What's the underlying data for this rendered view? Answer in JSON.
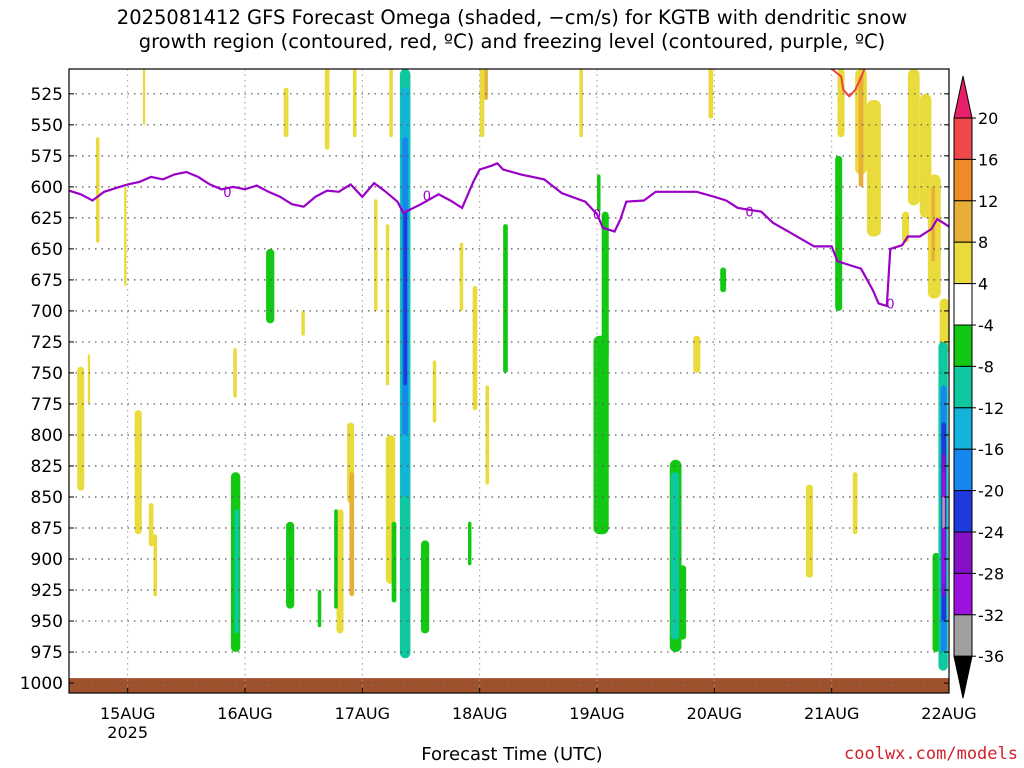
{
  "title": "2025081412 GFS Forecast Omega (shaded, −cm/s) for KGTB with dendritic snow\ngrowth region (contoured, red, ºC) and freezing level (contoured, purple, ºC)",
  "x_axis_title": "Forecast Time (UTC)",
  "credit": "coolwx.com/models",
  "colors": {
    "freezing_level": "#9b00c8",
    "dgz": "#f04040",
    "ground": "#a0522d",
    "grid": "#555555"
  },
  "chart_data": {
    "type": "heatmap",
    "title": "2025081412 GFS Forecast Omega (shaded, −cm/s) for KGTB with dendritic snow growth region (contoured, red, ºC) and freezing level (contoured, purple, ºC)",
    "xlabel": "Forecast Time (UTC)",
    "ylabel": "",
    "x_range_days": [
      14.5,
      22.0
    ],
    "x_ticks": [
      {
        "day": 15,
        "label": "15AUG",
        "sublabel": "2025"
      },
      {
        "day": 16,
        "label": "16AUG"
      },
      {
        "day": 17,
        "label": "17AUG"
      },
      {
        "day": 18,
        "label": "18AUG"
      },
      {
        "day": 19,
        "label": "19AUG"
      },
      {
        "day": 20,
        "label": "20AUG"
      },
      {
        "day": 21,
        "label": "21AUG"
      },
      {
        "day": 22,
        "label": "22AUG"
      }
    ],
    "y_range_hpa": [
      1008,
      505
    ],
    "y_ticks": [
      525,
      550,
      575,
      600,
      625,
      650,
      675,
      700,
      725,
      750,
      775,
      800,
      825,
      850,
      875,
      900,
      925,
      950,
      975,
      1000
    ],
    "grid": true,
    "colorbar": {
      "levels": [
        20,
        16,
        12,
        8,
        4,
        -4,
        -8,
        -12,
        -16,
        -20,
        -24,
        -28,
        -32,
        -36
      ],
      "colors": [
        "#e8206a",
        "#f04848",
        "#ef8a28",
        "#e8ae38",
        "#e9db3c",
        "#ffffff",
        "#12c812",
        "#10c8a0",
        "#12b4dc",
        "#1488f0",
        "#1e3adc",
        "#8410c8",
        "#9e10de",
        "#a0a0a0",
        "#000000"
      ]
    },
    "freezing_level_contour": {
      "label": "0",
      "points": [
        [
          14.5,
          603
        ],
        [
          14.6,
          606
        ],
        [
          14.7,
          611
        ],
        [
          14.8,
          604
        ],
        [
          14.9,
          601
        ],
        [
          15.0,
          598
        ],
        [
          15.1,
          596
        ],
        [
          15.2,
          592
        ],
        [
          15.3,
          594
        ],
        [
          15.4,
          590
        ],
        [
          15.5,
          588
        ],
        [
          15.6,
          592
        ],
        [
          15.7,
          598
        ],
        [
          15.8,
          602
        ],
        [
          15.9,
          600
        ],
        [
          16.0,
          602
        ],
        [
          16.1,
          599
        ],
        [
          16.2,
          604
        ],
        [
          16.3,
          608
        ],
        [
          16.4,
          614
        ],
        [
          16.5,
          616
        ],
        [
          16.6,
          608
        ],
        [
          16.7,
          603
        ],
        [
          16.8,
          604
        ],
        [
          16.9,
          598
        ],
        [
          17.0,
          608
        ],
        [
          17.1,
          597
        ],
        [
          17.2,
          604
        ],
        [
          17.3,
          612
        ],
        [
          17.35,
          621
        ],
        [
          17.5,
          614
        ],
        [
          17.65,
          606
        ],
        [
          17.75,
          611
        ],
        [
          17.85,
          617
        ],
        [
          17.95,
          595
        ],
        [
          18.0,
          586
        ],
        [
          18.1,
          583
        ],
        [
          18.15,
          581
        ],
        [
          18.2,
          586
        ],
        [
          18.35,
          590
        ],
        [
          18.55,
          594
        ],
        [
          18.7,
          605
        ],
        [
          18.9,
          612
        ],
        [
          19.0,
          622
        ],
        [
          19.05,
          633
        ],
        [
          19.15,
          636
        ],
        [
          19.2,
          626
        ],
        [
          19.25,
          612
        ],
        [
          19.4,
          611
        ],
        [
          19.5,
          604
        ],
        [
          19.65,
          604
        ],
        [
          19.85,
          604
        ],
        [
          20.0,
          608
        ],
        [
          20.1,
          611
        ],
        [
          20.2,
          617
        ],
        [
          20.4,
          620
        ],
        [
          20.5,
          629
        ],
        [
          20.65,
          637
        ],
        [
          20.85,
          648
        ],
        [
          21.0,
          648
        ],
        [
          21.05,
          660
        ],
        [
          21.15,
          663
        ],
        [
          21.25,
          666
        ],
        [
          21.35,
          683
        ],
        [
          21.4,
          694
        ],
        [
          21.47,
          696
        ],
        [
          21.5,
          650
        ],
        [
          21.6,
          647
        ],
        [
          21.65,
          640
        ],
        [
          21.75,
          640
        ],
        [
          21.85,
          634
        ],
        [
          21.9,
          626
        ],
        [
          22.0,
          632
        ]
      ]
    },
    "dgz_contour": {
      "points": [
        [
          21.0,
          505
        ],
        [
          21.08,
          511
        ],
        [
          21.1,
          522
        ],
        [
          21.15,
          527
        ],
        [
          21.2,
          522
        ],
        [
          21.25,
          512
        ],
        [
          21.28,
          505
        ]
      ]
    },
    "omega_regions": [
      {
        "level": "4",
        "x": [
          14.57,
          14.63
        ],
        "p": [
          745,
          845
        ]
      },
      {
        "level": "4",
        "x": [
          14.66,
          14.68
        ],
        "p": [
          735,
          775
        ]
      },
      {
        "level": "4",
        "x": [
          14.73,
          14.76
        ],
        "p": [
          560,
          645
        ]
      },
      {
        "level": "4",
        "x": [
          14.97,
          14.99
        ],
        "p": [
          600,
          680
        ]
      },
      {
        "level": "4",
        "x": [
          15.06,
          15.12
        ],
        "p": [
          780,
          880
        ]
      },
      {
        "level": "4",
        "x": [
          15.13,
          15.15
        ],
        "p": [
          505,
          550
        ]
      },
      {
        "level": "4",
        "x": [
          15.18,
          15.22
        ],
        "p": [
          855,
          890
        ]
      },
      {
        "level": "4",
        "x": [
          15.22,
          15.25
        ],
        "p": [
          880,
          930
        ]
      },
      {
        "level": "4",
        "x": [
          15.9,
          15.93
        ],
        "p": [
          730,
          770
        ]
      },
      {
        "level": "4",
        "x": [
          16.33,
          16.37
        ],
        "p": [
          520,
          560
        ]
      },
      {
        "level": "4",
        "x": [
          16.48,
          16.51
        ],
        "p": [
          700,
          720
        ]
      },
      {
        "level": "4",
        "x": [
          16.68,
          16.72
        ],
        "p": [
          505,
          570
        ]
      },
      {
        "level": "4",
        "x": [
          16.78,
          16.84
        ],
        "p": [
          860,
          960
        ]
      },
      {
        "level": "4",
        "x": [
          16.87,
          16.93
        ],
        "p": [
          790,
          855
        ]
      },
      {
        "level": "4",
        "x": [
          16.92,
          16.95
        ],
        "p": [
          505,
          560
        ]
      },
      {
        "level": "4",
        "x": [
          17.1,
          17.13
        ],
        "p": [
          610,
          700
        ]
      },
      {
        "level": "4",
        "x": [
          17.2,
          17.23
        ],
        "p": [
          630,
          760
        ]
      },
      {
        "level": "4",
        "x": [
          17.2,
          17.28
        ],
        "p": [
          800,
          920
        ]
      },
      {
        "level": "4",
        "x": [
          17.23,
          17.26
        ],
        "p": [
          505,
          560
        ]
      },
      {
        "level": "4",
        "x": [
          17.6,
          17.63
        ],
        "p": [
          740,
          790
        ]
      },
      {
        "level": "4",
        "x": [
          17.83,
          17.86
        ],
        "p": [
          645,
          700
        ]
      },
      {
        "level": "4",
        "x": [
          17.94,
          17.98
        ],
        "p": [
          680,
          780
        ]
      },
      {
        "level": "4",
        "x": [
          18.0,
          18.04
        ],
        "p": [
          505,
          560
        ]
      },
      {
        "level": "4",
        "x": [
          18.05,
          18.08
        ],
        "p": [
          760,
          840
        ]
      },
      {
        "level": "4",
        "x": [
          18.85,
          18.88
        ],
        "p": [
          505,
          560
        ]
      },
      {
        "level": "4",
        "x": [
          19.95,
          19.99
        ],
        "p": [
          505,
          545
        ]
      },
      {
        "level": "4",
        "x": [
          19.82,
          19.88
        ],
        "p": [
          720,
          750
        ]
      },
      {
        "level": "4",
        "x": [
          20.78,
          20.84
        ],
        "p": [
          840,
          915
        ]
      },
      {
        "level": "4",
        "x": [
          21.05,
          21.11
        ],
        "p": [
          505,
          560
        ]
      },
      {
        "level": "4",
        "x": [
          21.18,
          21.22
        ],
        "p": [
          830,
          880
        ]
      },
      {
        "level": "4",
        "x": [
          21.2,
          21.3
        ],
        "p": [
          505,
          590
        ]
      },
      {
        "level": "4",
        "x": [
          21.3,
          21.42
        ],
        "p": [
          530,
          640
        ]
      },
      {
        "level": "4",
        "x": [
          21.6,
          21.66
        ],
        "p": [
          620,
          645
        ]
      },
      {
        "level": "4",
        "x": [
          21.65,
          21.75
        ],
        "p": [
          505,
          615
        ]
      },
      {
        "level": "4",
        "x": [
          21.75,
          21.85
        ],
        "p": [
          525,
          625
        ]
      },
      {
        "level": "4",
        "x": [
          21.82,
          21.93
        ],
        "p": [
          590,
          690
        ]
      },
      {
        "level": "4",
        "x": [
          21.92,
          22.0
        ],
        "p": [
          690,
          735
        ]
      },
      {
        "level": "8",
        "x": [
          21.23,
          21.27
        ],
        "p": [
          510,
          600
        ]
      },
      {
        "level": "8",
        "x": [
          21.85,
          21.88
        ],
        "p": [
          600,
          660
        ]
      },
      {
        "level": "8",
        "x": [
          16.89,
          16.93
        ],
        "p": [
          830,
          930
        ]
      },
      {
        "level": "8",
        "x": [
          18.04,
          18.07
        ],
        "p": [
          505,
          530
        ]
      },
      {
        "level": "-4",
        "x": [
          16.18,
          16.25
        ],
        "p": [
          650,
          710
        ]
      },
      {
        "level": "-4",
        "x": [
          15.88,
          15.96
        ],
        "p": [
          830,
          975
        ]
      },
      {
        "level": "-4",
        "x": [
          16.35,
          16.42
        ],
        "p": [
          870,
          940
        ]
      },
      {
        "level": "-4",
        "x": [
          16.62,
          16.65
        ],
        "p": [
          925,
          955
        ]
      },
      {
        "level": "-4",
        "x": [
          16.76,
          16.79
        ],
        "p": [
          860,
          940
        ]
      },
      {
        "level": "-4",
        "x": [
          17.25,
          17.29
        ],
        "p": [
          870,
          935
        ]
      },
      {
        "level": "-4",
        "x": [
          17.5,
          17.57
        ],
        "p": [
          885,
          960
        ]
      },
      {
        "level": "-4",
        "x": [
          17.9,
          17.93
        ],
        "p": [
          870,
          905
        ]
      },
      {
        "level": "-4",
        "x": [
          18.2,
          18.24
        ],
        "p": [
          630,
          750
        ]
      },
      {
        "level": "-4",
        "x": [
          18.97,
          19.1
        ],
        "p": [
          720,
          880
        ]
      },
      {
        "level": "-4",
        "x": [
          19.04,
          19.1
        ],
        "p": [
          620,
          740
        ]
      },
      {
        "level": "-4",
        "x": [
          19.0,
          19.03
        ],
        "p": [
          590,
          620
        ]
      },
      {
        "level": "-4",
        "x": [
          19.7,
          19.76
        ],
        "p": [
          905,
          965
        ]
      },
      {
        "level": "-4",
        "x": [
          20.05,
          20.1
        ],
        "p": [
          665,
          685
        ]
      },
      {
        "level": "-4",
        "x": [
          21.03,
          21.09
        ],
        "p": [
          575,
          700
        ]
      },
      {
        "level": "-4",
        "x": [
          21.86,
          21.92
        ],
        "p": [
          895,
          975
        ]
      },
      {
        "level": "-4",
        "x": [
          19.62,
          19.72
        ],
        "p": [
          820,
          975
        ]
      },
      {
        "level": "-8",
        "x": [
          15.91,
          15.95
        ],
        "p": [
          860,
          960
        ]
      },
      {
        "level": "-8",
        "x": [
          17.32,
          17.41
        ],
        "p": [
          505,
          980
        ]
      },
      {
        "level": "-8",
        "x": [
          19.63,
          19.7
        ],
        "p": [
          830,
          965
        ]
      },
      {
        "level": "-8",
        "x": [
          21.91,
          21.99
        ],
        "p": [
          725,
          990
        ]
      },
      {
        "level": "-12",
        "x": [
          17.33,
          17.4
        ],
        "p": [
          520,
          850
        ]
      },
      {
        "level": "-16",
        "x": [
          17.34,
          17.39
        ],
        "p": [
          560,
          800
        ]
      },
      {
        "level": "-20",
        "x": [
          17.35,
          17.38
        ],
        "p": [
          620,
          760
        ]
      },
      {
        "level": "-16",
        "x": [
          21.93,
          21.98
        ],
        "p": [
          760,
          975
        ]
      },
      {
        "level": "-20",
        "x": [
          21.935,
          21.975
        ],
        "p": [
          790,
          950
        ]
      },
      {
        "level": "-24",
        "x": [
          21.94,
          21.97
        ],
        "p": [
          815,
          930
        ]
      },
      {
        "level": "-28",
        "x": [
          21.94,
          21.97
        ],
        "p": [
          830,
          920
        ]
      },
      {
        "level": "-32",
        "x": [
          21.943,
          21.965
        ],
        "p": [
          850,
          875
        ]
      }
    ],
    "ground": {
      "p_top": 996,
      "p_bottom": 1008
    }
  }
}
